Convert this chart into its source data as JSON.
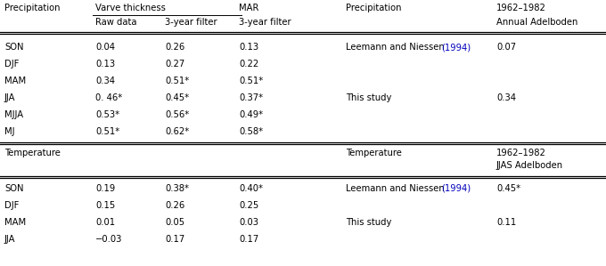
{
  "figsize": [
    6.8,
    2.99
  ],
  "dpi": 100,
  "background": "#ffffff",
  "link_color": "#0000bb",
  "text_color": "#000000",
  "font_size": 7.2,
  "precip_rows": [
    [
      "SON",
      "0.04",
      "0.26",
      "0.13"
    ],
    [
      "DJF",
      "0.13",
      "0.27",
      "0.22"
    ],
    [
      "MAM",
      "0.34",
      "0.51*",
      "0.51*"
    ],
    [
      "JJA",
      "0. 46*",
      "0.45*",
      "0.37*"
    ],
    [
      "MJJA",
      "0.53*",
      "0.56*",
      "0.49*"
    ],
    [
      "MJ",
      "0.51*",
      "0.62*",
      "0.58*"
    ]
  ],
  "precip_right": [
    [
      "Leemann and Niessen ",
      "(1994)",
      "0.07"
    ],
    [
      "",
      "",
      ""
    ],
    [
      "",
      "",
      ""
    ],
    [
      "This study",
      "",
      "0.34"
    ],
    [
      "",
      "",
      ""
    ],
    [
      "",
      "",
      ""
    ]
  ],
  "temp_rows": [
    [
      "SON",
      "0.19",
      "0.38*",
      "0.40*"
    ],
    [
      "DJF",
      "0.15",
      "0.26",
      "0.25"
    ],
    [
      "MAM",
      "0.01",
      "0.05",
      "0.03"
    ],
    [
      "JJA",
      "−0.03",
      "0.17",
      "0.17"
    ]
  ],
  "temp_right": [
    [
      "Leemann and Niessen ",
      "(1994)",
      "0.45*"
    ],
    [
      "",
      "",
      ""
    ],
    [
      "This study",
      "",
      "0.11"
    ],
    [
      "",
      "",
      ""
    ]
  ]
}
